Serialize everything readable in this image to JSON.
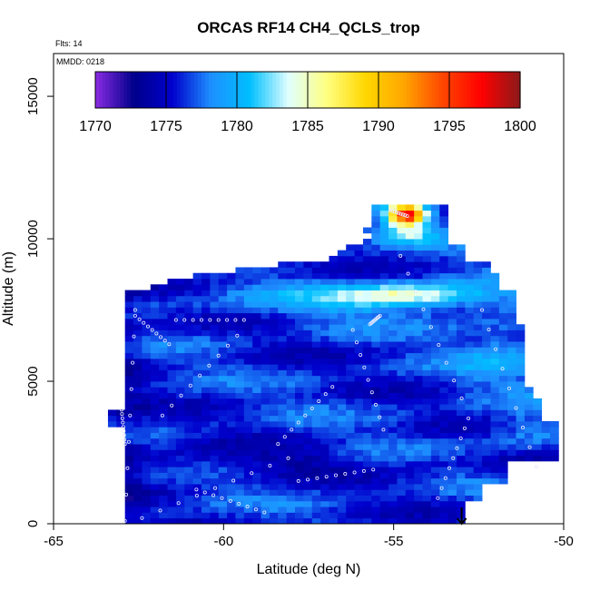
{
  "chart_data": {
    "type": "heatmap",
    "title": "ORCAS RF14 CH4_QCLS_trop",
    "flts_label": "Flts: 14",
    "mmdd_label": "MMDD: 0218",
    "xlabel": "Latitude (deg N)",
    "ylabel": "Altitude (m)",
    "xlim": [
      -65,
      -50
    ],
    "ylim": [
      0,
      16500
    ],
    "x_ticks": [
      -65,
      -60,
      -55,
      -50
    ],
    "y_ticks": [
      0,
      5000,
      10000,
      15000
    ],
    "colorbar": {
      "range": [
        1770,
        1800
      ],
      "ticks": [
        1770,
        1775,
        1780,
        1785,
        1790,
        1795,
        1800
      ],
      "colors": [
        "#8a2be2",
        "#00008b",
        "#0000cd",
        "#1e90ff",
        "#00bfff",
        "#e0ffff",
        "#ffff80",
        "#ffd700",
        "#ffa500",
        "#ff4500",
        "#ff0000",
        "#8b1a1a"
      ]
    },
    "field_summary": {
      "background_ch4": 1776,
      "high_plume": {
        "lat_center": -54.6,
        "alt_center": 10800,
        "peak_ch4": 1797
      },
      "band_8000m": {
        "lat_center": -54.5,
        "ch4": 1784
      }
    },
    "arrow_marker": {
      "lat": -53,
      "alt": 0,
      "direction": "down"
    }
  }
}
